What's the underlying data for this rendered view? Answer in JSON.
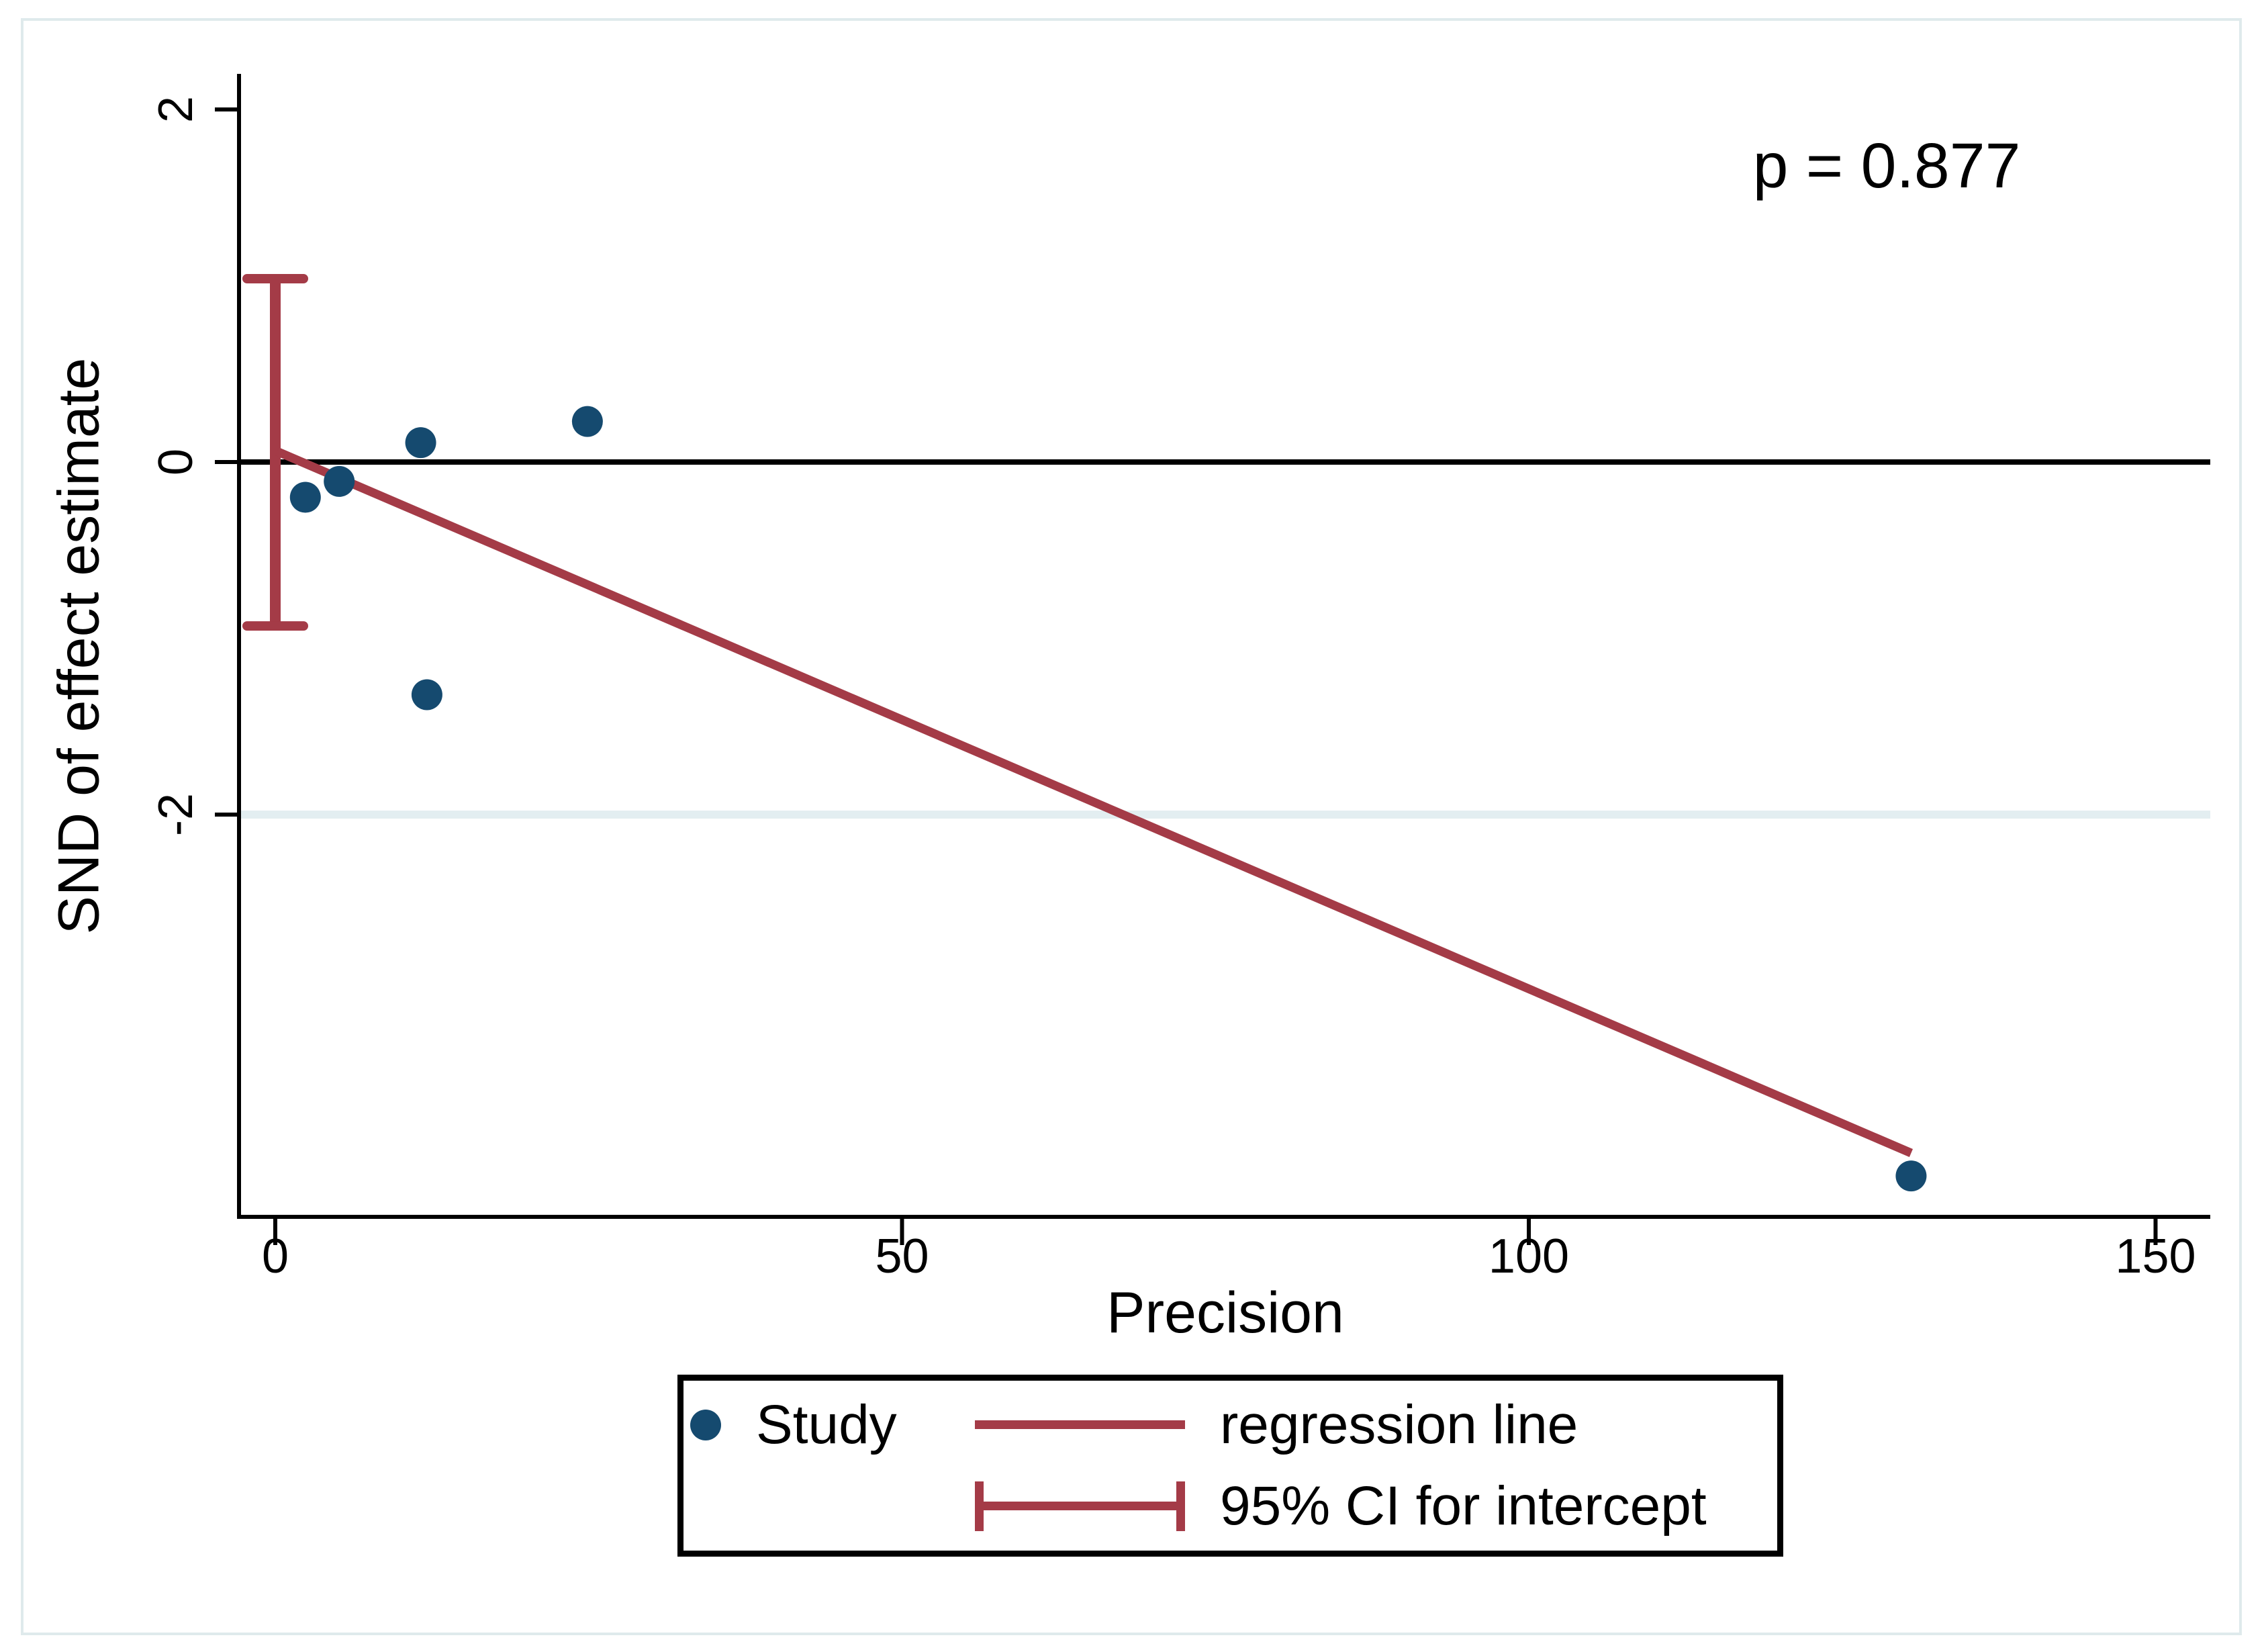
{
  "figure": {
    "p_label": "p = 0.877",
    "x_axis_title": "Precision",
    "y_axis_title": "SND of effect estimate"
  },
  "legend": {
    "study_label": "Study",
    "regression_label": "regression line",
    "ci_label": "95% CI for intercept"
  },
  "colors": {
    "marker": "#154a6f",
    "regression": "#a43b47",
    "ci": "#a43b47",
    "gridline": "#e3eef1",
    "axis": "#000000",
    "frame": "#dfeaec"
  },
  "chart_data": {
    "type": "scatter",
    "title": "",
    "xlabel": "Precision",
    "ylabel": "SND of effect estimate",
    "annotation": "p = 0.877",
    "xlim": [
      -2.8,
      154.3
    ],
    "ylim": [
      -4.28,
      2.2
    ],
    "x_tick_values": [
      0,
      50,
      100,
      150
    ],
    "x_tick_labels": [
      "0",
      "50",
      "100",
      "150"
    ],
    "y_tick_values": [
      2,
      0,
      -2
    ],
    "y_tick_labels": [
      "2",
      "0",
      "-2"
    ],
    "grid": "single horizontal gridline at y = -2",
    "gridline_y": -2,
    "reference_line_y": 0,
    "legend_position": "bottom center",
    "series": [
      {
        "name": "Study",
        "type": "scatter",
        "points": [
          [
            2.4,
            -0.2
          ],
          [
            5.1,
            -0.11
          ],
          [
            11.6,
            0.11
          ],
          [
            24.9,
            0.23
          ],
          [
            12.1,
            -1.32
          ],
          [
            130.5,
            -4.05
          ]
        ]
      },
      {
        "name": "regression line",
        "type": "line",
        "x": [
          0.15,
          130.5
        ],
        "y": [
          0.06,
          -3.92
        ]
      },
      {
        "name": "95% CI for intercept",
        "type": "errorbar",
        "x": 0,
        "upper": 1.04,
        "lower": -0.93,
        "cap_halfwidth_x_units": 2.25
      }
    ]
  }
}
